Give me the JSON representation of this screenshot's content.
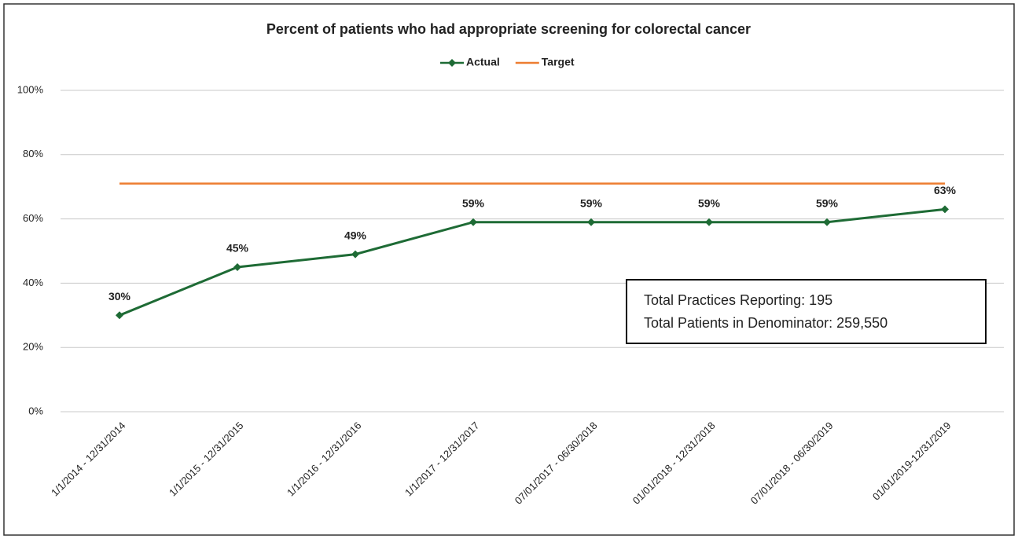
{
  "chart_data": {
    "type": "line",
    "title": "Percent of patients who had appropriate screening for colorectal cancer",
    "categories": [
      "1/1/2014 - 12/31/2014",
      "1/1/2015 - 12/31/2015",
      "1/1/2016 - 12/31/2016",
      "1/1/2017 - 12/31/2017",
      "07/01/2017 - 06/30/2018",
      "01/01/2018 - 12/31/2018",
      "07/01/2018 - 06/30/2019",
      "01/01/2019-12/31/2019"
    ],
    "series": [
      {
        "name": "Actual",
        "color": "#1e6b35",
        "values": [
          30,
          45,
          49,
          59,
          59,
          59,
          59,
          63
        ],
        "value_labels": [
          "30%",
          "45%",
          "49%",
          "59%",
          "59%",
          "59%",
          "59%",
          "63%"
        ],
        "marker": "diamond"
      },
      {
        "name": "Target",
        "color": "#ed7d31",
        "values": [
          71,
          71,
          71,
          71,
          71,
          71,
          71,
          71
        ]
      }
    ],
    "ylim": [
      0,
      100
    ],
    "yticks": [
      {
        "value": 0,
        "label": "0%"
      },
      {
        "value": 20,
        "label": "20%"
      },
      {
        "value": 40,
        "label": "40%"
      },
      {
        "value": 60,
        "label": "60%"
      },
      {
        "value": 80,
        "label": "80%"
      },
      {
        "value": 100,
        "label": "100%"
      }
    ],
    "grid": true,
    "legend": "top",
    "annotations": [
      "Total Practices Reporting: 195",
      "Total Patients in Denominator: 259,550"
    ]
  }
}
